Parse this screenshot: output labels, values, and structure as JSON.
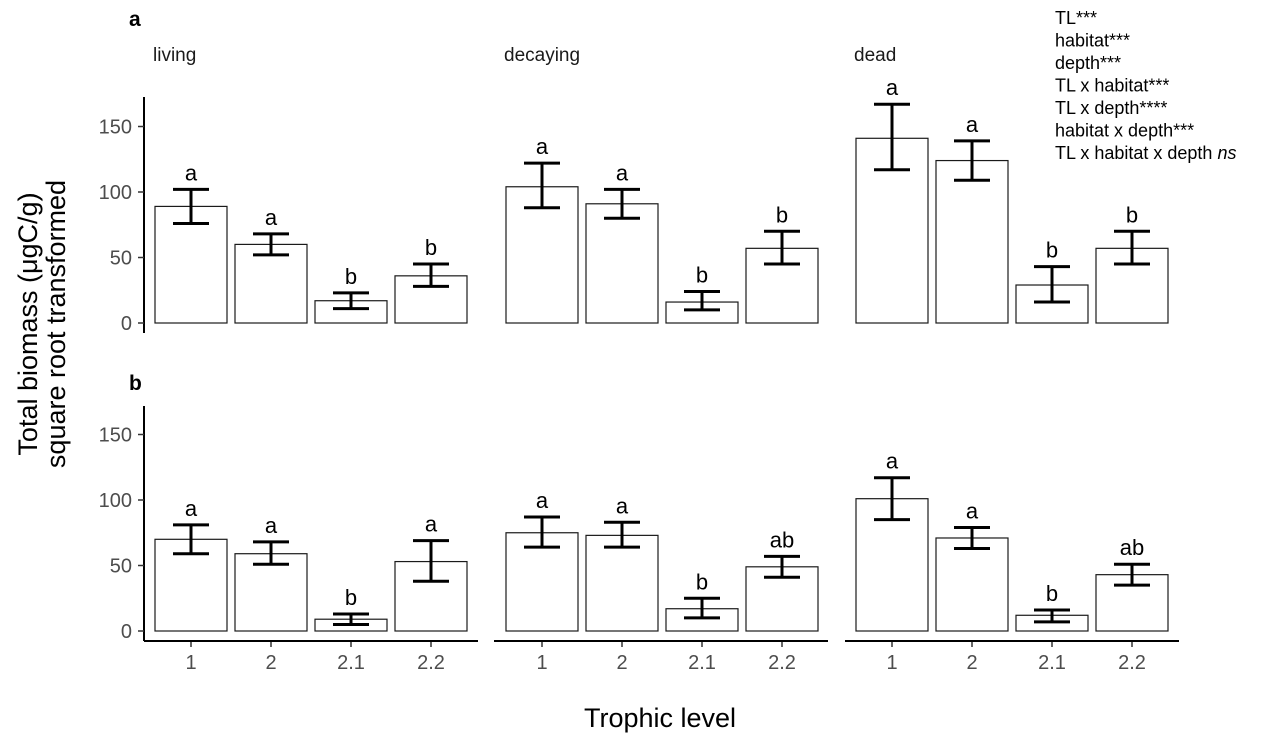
{
  "chart_data": {
    "type": "bar",
    "xlabel": "Trophic level",
    "ylabel_line1": "Total biomass (μgC/g)",
    "ylabel_line2": "square root transformed",
    "ylim": [
      0,
      175
    ],
    "yticks": [
      0,
      50,
      100,
      150
    ],
    "categories": [
      "1",
      "2",
      "2.1",
      "2.2"
    ],
    "facets": [
      "living",
      "decaying",
      "dead"
    ],
    "stats_lines": [
      {
        "text": "TL***",
        "italic_suffix": ""
      },
      {
        "text": "habitat***",
        "italic_suffix": ""
      },
      {
        "text": "depth***",
        "italic_suffix": ""
      },
      {
        "text": "TL x habitat***",
        "italic_suffix": ""
      },
      {
        "text": "TL x depth****",
        "italic_suffix": ""
      },
      {
        "text": "habitat x depth***",
        "italic_suffix": ""
      },
      {
        "text": "TL x habitat x depth ",
        "italic_suffix": "ns"
      }
    ],
    "panels": [
      {
        "tag": "a",
        "facets": [
          {
            "name": "living",
            "bars": [
              {
                "category": "1",
                "value": 89,
                "lower": 76,
                "upper": 102,
                "letter": "a"
              },
              {
                "category": "2",
                "value": 60,
                "lower": 52,
                "upper": 68,
                "letter": "a"
              },
              {
                "category": "2.1",
                "value": 17,
                "lower": 11,
                "upper": 23,
                "letter": "b"
              },
              {
                "category": "2.2",
                "value": 36,
                "lower": 28,
                "upper": 45,
                "letter": "b"
              }
            ]
          },
          {
            "name": "decaying",
            "bars": [
              {
                "category": "1",
                "value": 104,
                "lower": 88,
                "upper": 122,
                "letter": "a"
              },
              {
                "category": "2",
                "value": 91,
                "lower": 80,
                "upper": 102,
                "letter": "a"
              },
              {
                "category": "2.1",
                "value": 16,
                "lower": 10,
                "upper": 24,
                "letter": "b"
              },
              {
                "category": "2.2",
                "value": 57,
                "lower": 45,
                "upper": 70,
                "letter": "b"
              }
            ]
          },
          {
            "name": "dead",
            "bars": [
              {
                "category": "1",
                "value": 141,
                "lower": 117,
                "upper": 167,
                "letter": "a"
              },
              {
                "category": "2",
                "value": 124,
                "lower": 109,
                "upper": 139,
                "letter": "a"
              },
              {
                "category": "2.1",
                "value": 29,
                "lower": 16,
                "upper": 43,
                "letter": "b"
              },
              {
                "category": "2.2",
                "value": 57,
                "lower": 45,
                "upper": 70,
                "letter": "b"
              }
            ]
          }
        ]
      },
      {
        "tag": "b",
        "facets": [
          {
            "name": "living",
            "bars": [
              {
                "category": "1",
                "value": 70,
                "lower": 59,
                "upper": 81,
                "letter": "a"
              },
              {
                "category": "2",
                "value": 59,
                "lower": 51,
                "upper": 68,
                "letter": "a"
              },
              {
                "category": "2.1",
                "value": 9,
                "lower": 5,
                "upper": 13,
                "letter": "b"
              },
              {
                "category": "2.2",
                "value": 53,
                "lower": 38,
                "upper": 69,
                "letter": "a"
              }
            ]
          },
          {
            "name": "decaying",
            "bars": [
              {
                "category": "1",
                "value": 75,
                "lower": 64,
                "upper": 87,
                "letter": "a"
              },
              {
                "category": "2",
                "value": 73,
                "lower": 64,
                "upper": 83,
                "letter": "a"
              },
              {
                "category": "2.1",
                "value": 17,
                "lower": 10,
                "upper": 25,
                "letter": "b"
              },
              {
                "category": "2.2",
                "value": 49,
                "lower": 41,
                "upper": 57,
                "letter": "ab"
              }
            ]
          },
          {
            "name": "dead",
            "bars": [
              {
                "category": "1",
                "value": 101,
                "lower": 85,
                "upper": 117,
                "letter": "a"
              },
              {
                "category": "2",
                "value": 71,
                "lower": 63,
                "upper": 79,
                "letter": "a"
              },
              {
                "category": "2.1",
                "value": 12,
                "lower": 7,
                "upper": 16,
                "letter": "b"
              },
              {
                "category": "2.2",
                "value": 43,
                "lower": 35,
                "upper": 51,
                "letter": "ab"
              }
            ]
          }
        ]
      }
    ]
  }
}
